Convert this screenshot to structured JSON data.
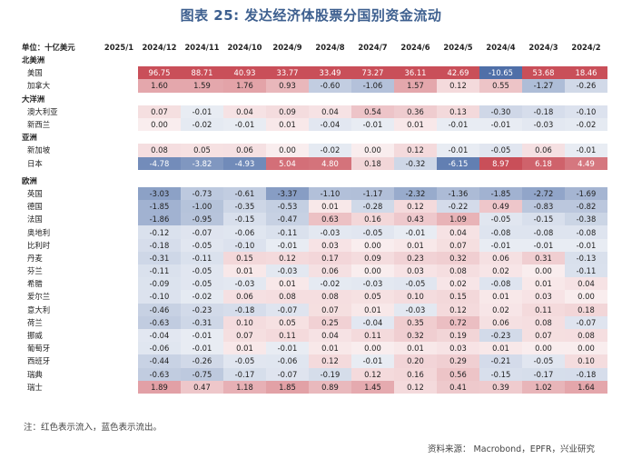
{
  "title": "图表 25: 发达经济体股票分国别资金流动",
  "table": {
    "unit_label": "单位：十亿美元",
    "columns": [
      "2025/1",
      "2024/12",
      "2024/11",
      "2024/10",
      "2024/9",
      "2024/8",
      "2024/7",
      "2024/6",
      "2024/5",
      "2024/4",
      "2024/3",
      "2024/2"
    ],
    "groups": [
      {
        "region": "北美洲",
        "rows": [
          {
            "name": "美国",
            "values": [
              "",
              "96.75",
              "88.71",
              "40.93",
              "33.77",
              "33.49",
              "73.27",
              "36.11",
              "42.69",
              "-10.65",
              "53.68",
              "18.46"
            ]
          },
          {
            "name": "加拿大",
            "values": [
              "",
              "1.60",
              "1.59",
              "1.76",
              "0.93",
              "-0.60",
              "-1.06",
              "1.57",
              "0.12",
              "0.55",
              "-1.27",
              "-0.26"
            ]
          }
        ]
      },
      {
        "region": "大洋洲",
        "rows": [
          {
            "name": "澳大利亚",
            "values": [
              "",
              "0.07",
              "-0.01",
              "0.04",
              "0.09",
              "0.04",
              "0.54",
              "0.36",
              "0.13",
              "-0.30",
              "-0.18",
              "-0.10"
            ]
          },
          {
            "name": "新西兰",
            "values": [
              "",
              "0.00",
              "-0.02",
              "-0.01",
              "0.01",
              "-0.04",
              "-0.01",
              "0.01",
              "-0.01",
              "-0.01",
              "-0.03",
              "-0.02"
            ]
          }
        ]
      },
      {
        "region": "亚洲",
        "rows": [
          {
            "name": "新加坡",
            "values": [
              "",
              "0.08",
              "0.05",
              "0.06",
              "0.00",
              "-0.02",
              "0.00",
              "0.12",
              "-0.01",
              "-0.05",
              "0.06",
              "-0.01"
            ]
          },
          {
            "name": "日本",
            "values": [
              "",
              "-4.78",
              "-3.82",
              "-4.93",
              "5.04",
              "4.80",
              "0.18",
              "-0.32",
              "-6.15",
              "8.97",
              "6.18",
              "4.49"
            ]
          }
        ]
      },
      {
        "region": "欧洲",
        "rows": [
          {
            "name": "英国",
            "values": [
              "",
              "-3.03",
              "-0.73",
              "-0.61",
              "-3.37",
              "-1.10",
              "-1.17",
              "-2.32",
              "-1.36",
              "-1.85",
              "-2.72",
              "-1.69"
            ]
          },
          {
            "name": "德国",
            "values": [
              "",
              "-1.85",
              "-1.00",
              "-0.35",
              "-0.53",
              "0.01",
              "-0.28",
              "0.12",
              "-0.22",
              "0.49",
              "-0.83",
              "-0.82"
            ]
          },
          {
            "name": "法国",
            "values": [
              "",
              "-1.86",
              "-0.95",
              "-0.15",
              "-0.47",
              "0.63",
              "0.16",
              "0.43",
              "1.09",
              "-0.05",
              "-0.15",
              "-0.38"
            ]
          },
          {
            "name": "奥地利",
            "values": [
              "",
              "-0.12",
              "-0.07",
              "-0.06",
              "-0.11",
              "-0.03",
              "-0.05",
              "-0.01",
              "0.04",
              "-0.08",
              "-0.08",
              "-0.08"
            ]
          },
          {
            "name": "比利时",
            "values": [
              "",
              "-0.18",
              "-0.05",
              "-0.10",
              "-0.01",
              "0.03",
              "0.00",
              "0.01",
              "0.07",
              "-0.01",
              "-0.01",
              "-0.01"
            ]
          },
          {
            "name": "丹麦",
            "values": [
              "",
              "-0.31",
              "-0.11",
              "0.15",
              "0.12",
              "0.17",
              "0.09",
              "0.23",
              "0.32",
              "0.06",
              "0.31",
              "-0.13"
            ]
          },
          {
            "name": "芬兰",
            "values": [
              "",
              "-0.11",
              "-0.05",
              "0.01",
              "-0.03",
              "0.06",
              "0.00",
              "0.03",
              "0.08",
              "0.02",
              "0.00",
              "-0.11"
            ]
          },
          {
            "name": "希腊",
            "values": [
              "",
              "-0.09",
              "-0.05",
              "-0.03",
              "0.01",
              "-0.02",
              "-0.03",
              "-0.05",
              "0.02",
              "-0.08",
              "0.01",
              "0.04"
            ]
          },
          {
            "name": "爱尔兰",
            "values": [
              "",
              "-0.10",
              "-0.02",
              "0.06",
              "0.08",
              "0.08",
              "0.05",
              "0.10",
              "0.15",
              "0.01",
              "0.03",
              "0.00"
            ]
          },
          {
            "name": "意大利",
            "values": [
              "",
              "-0.46",
              "-0.23",
              "-0.18",
              "-0.07",
              "0.07",
              "0.01",
              "-0.03",
              "0.12",
              "0.02",
              "0.11",
              "0.18"
            ]
          },
          {
            "name": "荷兰",
            "values": [
              "",
              "-0.63",
              "-0.31",
              "0.10",
              "0.05",
              "0.25",
              "-0.04",
              "0.35",
              "0.72",
              "0.06",
              "0.08",
              "-0.07"
            ]
          },
          {
            "name": "挪威",
            "values": [
              "",
              "-0.04",
              "-0.01",
              "0.07",
              "0.11",
              "0.04",
              "0.11",
              "0.32",
              "0.19",
              "-0.23",
              "0.07",
              "0.08"
            ]
          },
          {
            "name": "葡萄牙",
            "values": [
              "",
              "-0.06",
              "-0.01",
              "0.01",
              "-0.01",
              "0.01",
              "0.00",
              "0.01",
              "0.03",
              "0.01",
              "0.00",
              "0.00"
            ]
          },
          {
            "name": "西班牙",
            "values": [
              "",
              "-0.44",
              "-0.26",
              "-0.05",
              "-0.06",
              "0.12",
              "-0.01",
              "0.20",
              "0.29",
              "-0.21",
              "-0.05",
              "0.10"
            ]
          },
          {
            "name": "瑞典",
            "values": [
              "",
              "-0.63",
              "-0.75",
              "-0.17",
              "-0.07",
              "-0.19",
              "0.12",
              "0.16",
              "0.56",
              "-0.15",
              "-0.17",
              "-0.18"
            ]
          },
          {
            "name": "瑞士",
            "values": [
              "",
              "1.89",
              "0.47",
              "1.18",
              "1.85",
              "0.89",
              "1.45",
              "0.12",
              "0.41",
              "0.39",
              "1.02",
              "1.64"
            ]
          }
        ]
      }
    ]
  },
  "note": "注：红色表示流入，蓝色表示流出。",
  "source": "资料来源：  Macrobond，EPFR，兴业研究",
  "colors": {
    "inflow": "#c94f59",
    "outflow": "#4f6fa8",
    "title": "#3d5f8f",
    "white": "#ffffff"
  }
}
